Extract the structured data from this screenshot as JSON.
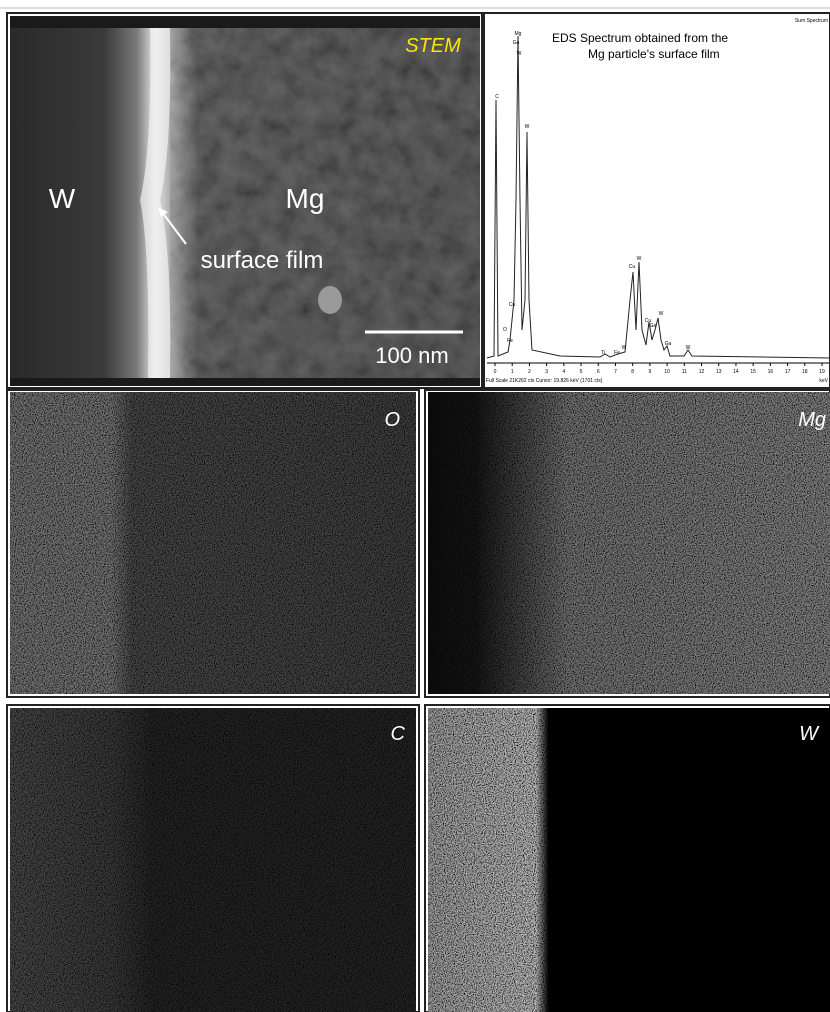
{
  "stem": {
    "label": "STEM",
    "left_label": "W",
    "right_label": "Mg",
    "annotation": "surface film",
    "scale_bar": "100 nm"
  },
  "spectrum": {
    "title_lines": [
      "EDS Spectrum obtained from the",
      "Mg particle's surface film"
    ],
    "corner_label": "Sum Spectrum",
    "footer": "Full Scale 21K262 cts  Cursor: 19.826 keV (1701 cts)",
    "x_unit": "keV",
    "xticks": [
      0,
      1,
      2,
      3,
      4,
      5,
      6,
      7,
      8,
      9,
      10,
      11,
      12,
      13,
      14,
      15,
      16,
      17,
      18,
      19
    ],
    "peak_labels": [
      "C",
      "Mg",
      "Ga",
      "W",
      "W",
      "Cu",
      "O",
      "Fe",
      "Ti",
      "Fe",
      "W",
      "Cu",
      "W",
      "Cu",
      "Ga",
      "W",
      "Ga",
      "W"
    ]
  },
  "maps": [
    {
      "label": "O"
    },
    {
      "label": "Mg"
    },
    {
      "label": "C"
    },
    {
      "label": "W"
    }
  ]
}
